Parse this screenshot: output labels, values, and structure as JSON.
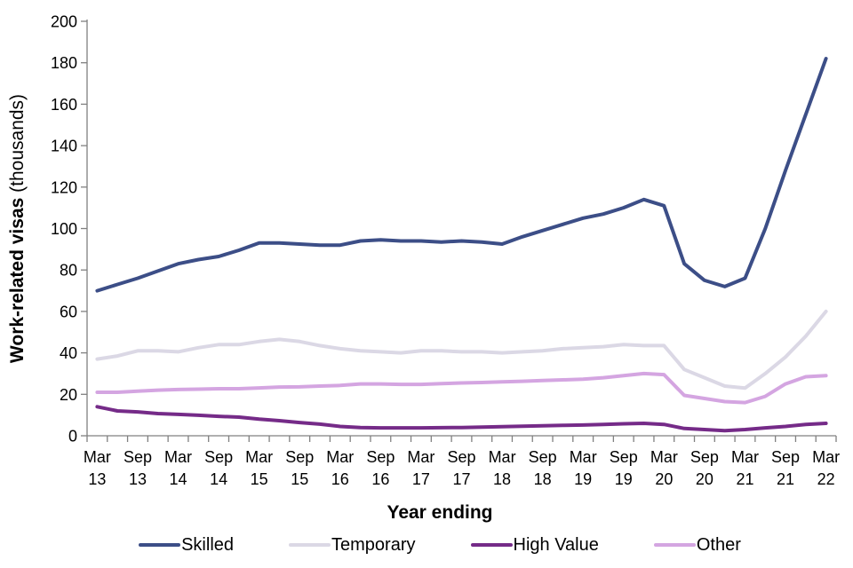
{
  "page": {
    "background": "#ffffff"
  },
  "chart_data": {
    "type": "line",
    "title": "",
    "xlabel": "Year ending",
    "ylabel_bold": "Work-related visas",
    "ylabel_unit": "(thousands)",
    "ylim": [
      0,
      200
    ],
    "yticks": [
      0,
      20,
      40,
      60,
      80,
      100,
      120,
      140,
      160,
      180,
      200
    ],
    "x_label_every": 2,
    "grid": false,
    "legend_position": "bottom",
    "axis_color": "#808080",
    "text_color": "#000000",
    "x": [
      "Mar 13",
      "Jun 13",
      "Sep 13",
      "Dec 13",
      "Mar 14",
      "Jun 14",
      "Sep 14",
      "Dec 14",
      "Mar 15",
      "Jun 15",
      "Sep 15",
      "Dec 15",
      "Mar 16",
      "Jun 16",
      "Sep 16",
      "Dec 16",
      "Mar 17",
      "Jun 17",
      "Sep 17",
      "Dec 17",
      "Mar 18",
      "Jun 18",
      "Sep 18",
      "Dec 18",
      "Mar 19",
      "Jun 19",
      "Sep 19",
      "Dec 19",
      "Mar 20",
      "Jun 20",
      "Sep 20",
      "Dec 20",
      "Mar 21",
      "Jun 21",
      "Sep 21",
      "Dec 21",
      "Mar 22"
    ],
    "series": [
      {
        "name": "Skilled",
        "color": "#3C4E87",
        "values": [
          70,
          73,
          76,
          79.5,
          83,
          85,
          86.5,
          89.5,
          93,
          93,
          92.5,
          92,
          92,
          94,
          94.5,
          94,
          94,
          93.5,
          94,
          93.5,
          92.5,
          96,
          99,
          102,
          105,
          107,
          110,
          114,
          111,
          83,
          75,
          72,
          76,
          100,
          128,
          155,
          182
        ]
      },
      {
        "name": "Temporary",
        "color": "#DBD8E5",
        "values": [
          37,
          38.5,
          41,
          41,
          40.5,
          42.5,
          44,
          44,
          45.5,
          46.5,
          45.5,
          43.5,
          42,
          41,
          40.5,
          40,
          41,
          41,
          40.5,
          40.5,
          40,
          40.5,
          41,
          42,
          42.5,
          43,
          44,
          43.5,
          43.5,
          32,
          28,
          24,
          23,
          30,
          38,
          48,
          60
        ]
      },
      {
        "name": "High Value",
        "color": "#752B88",
        "values": [
          14,
          12,
          11.5,
          10.7,
          10.3,
          9.9,
          9.4,
          9,
          8,
          7.3,
          6.4,
          5.6,
          4.5,
          4,
          3.8,
          3.8,
          3.8,
          3.9,
          4,
          4.2,
          4.4,
          4.6,
          4.8,
          5,
          5.2,
          5.5,
          5.8,
          6,
          5.5,
          3.5,
          3,
          2.5,
          3,
          3.8,
          4.5,
          5.5,
          6
        ]
      },
      {
        "name": "Other",
        "color": "#D4A5E1",
        "values": [
          21,
          21,
          21.5,
          22,
          22.3,
          22.5,
          22.7,
          22.7,
          23.1,
          23.5,
          23.6,
          24,
          24.3,
          25,
          25,
          24.8,
          24.8,
          25.2,
          25.5,
          25.7,
          26,
          26.3,
          26.7,
          27,
          27.3,
          28,
          29,
          30,
          29.5,
          19.5,
          18,
          16.5,
          16,
          19,
          25,
          28.5,
          29
        ]
      }
    ]
  }
}
